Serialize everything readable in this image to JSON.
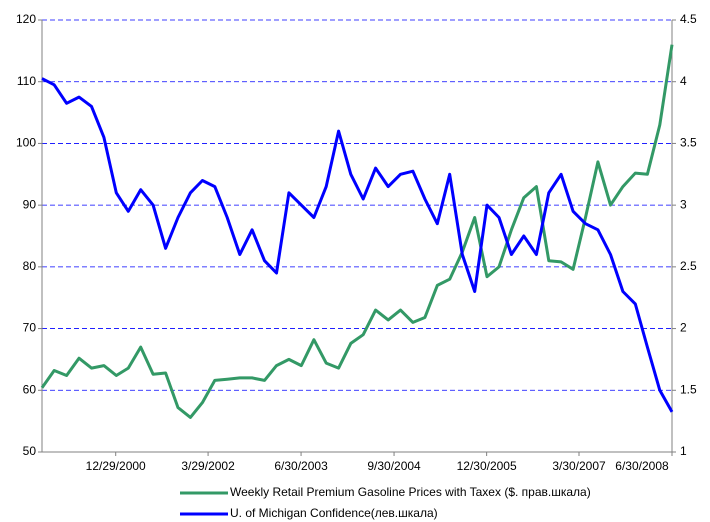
{
  "chart_data": {
    "type": "line",
    "x": [
      "1/1/2000",
      "3/1/2000",
      "5/1/2000",
      "7/1/2000",
      "9/1/2000",
      "11/1/2000",
      "1/1/2001",
      "3/1/2001",
      "5/1/2001",
      "7/1/2001",
      "9/1/2001",
      "11/1/2001",
      "1/1/2002",
      "3/1/2002",
      "5/1/2002",
      "7/1/2002",
      "9/1/2002",
      "11/1/2002",
      "1/1/2003",
      "3/1/2003",
      "5/1/2003",
      "7/1/2003",
      "9/1/2003",
      "11/1/2003",
      "1/1/2004",
      "3/1/2004",
      "5/1/2004",
      "7/1/2004",
      "9/1/2004",
      "11/1/2004",
      "1/1/2005",
      "3/1/2005",
      "5/1/2005",
      "7/1/2005",
      "9/1/2005",
      "11/1/2005",
      "1/1/2006",
      "3/1/2006",
      "5/1/2006",
      "7/1/2006",
      "9/1/2006",
      "11/1/2006",
      "1/1/2007",
      "3/1/2007",
      "5/1/2007",
      "7/1/2007",
      "9/1/2007",
      "11/1/2007",
      "1/1/2008",
      "3/1/2008",
      "5/1/2008",
      "6/30/2008"
    ],
    "series": [
      {
        "name": "Weekly Retail Premium Gasoline Prices with Taxex ($. прав.шкала)",
        "color": "#339966",
        "axis": "y2",
        "values": [
          1.52,
          1.66,
          1.62,
          1.76,
          1.68,
          1.7,
          1.62,
          1.68,
          1.85,
          1.63,
          1.64,
          1.36,
          1.28,
          1.4,
          1.58,
          1.59,
          1.6,
          1.6,
          1.58,
          1.7,
          1.75,
          1.7,
          1.91,
          1.72,
          1.68,
          1.88,
          1.95,
          2.15,
          2.07,
          2.15,
          2.05,
          2.09,
          2.35,
          2.4,
          2.62,
          2.9,
          2.42,
          2.5,
          2.8,
          3.06,
          3.15,
          2.55,
          2.54,
          2.48,
          2.9,
          3.35,
          3.0,
          3.15,
          3.26,
          3.25,
          3.65,
          4.3
        ]
      },
      {
        "name": "U. of Michigan Confidence(лев.шкала)",
        "color": "#0000ff",
        "axis": "y",
        "values": [
          110.5,
          109.5,
          106.5,
          107.5,
          106,
          101,
          92,
          89,
          92.5,
          90,
          83,
          88,
          92,
          94,
          93,
          88,
          82,
          86,
          81,
          79,
          92,
          90,
          88,
          93,
          102,
          95,
          91,
          96,
          93,
          95,
          95.5,
          91,
          87,
          95,
          82,
          76,
          90,
          88,
          82,
          85,
          82,
          92,
          95,
          89,
          87,
          86,
          82,
          76,
          74,
          67,
          60,
          56.5
        ]
      }
    ],
    "xlim": [
      "1/1/2000",
      "6/30/2008"
    ],
    "xticks": [
      "12/29/2000",
      "3/29/2002",
      "6/30/2003",
      "9/30/2004",
      "12/30/2005",
      "3/30/2007",
      "6/30/2008"
    ],
    "ylim": [
      50,
      120
    ],
    "yticks": [
      50,
      60,
      70,
      80,
      90,
      100,
      110,
      120
    ],
    "y2lim": [
      1,
      4.5
    ],
    "y2ticks": [
      1,
      1.5,
      2,
      2.5,
      3,
      3.5,
      4,
      4.5
    ],
    "grid": true,
    "legend": "bottom"
  }
}
